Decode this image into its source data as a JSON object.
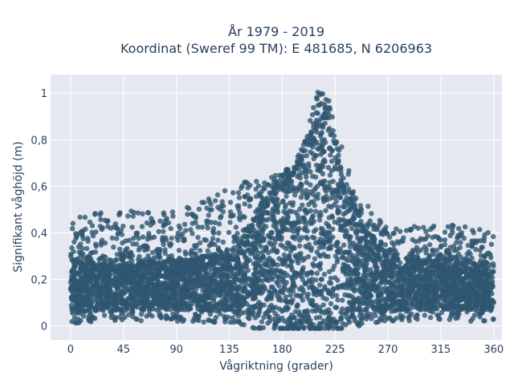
{
  "chart_data": {
    "type": "scatter",
    "title": [
      "År 1979 - 2019",
      "Koordinat (Sweref 99 TM): E 481685, N 6206963"
    ],
    "xlabel": "Vågriktning (grader)",
    "ylabel": "Signifikant våghöjd (m)",
    "xlim": [
      -17,
      367
    ],
    "ylim": [
      -0.06,
      1.08
    ],
    "xticks": [
      0,
      45,
      90,
      135,
      180,
      225,
      270,
      315,
      360
    ],
    "xtick_labels": [
      "0",
      "45",
      "90",
      "135",
      "180",
      "225",
      "270",
      "315",
      "360"
    ],
    "yticks": [
      0,
      0.2,
      0.4,
      0.6,
      0.8,
      1
    ],
    "ytick_labels": [
      "0",
      "0,2",
      "0,4",
      "0,6",
      "0,8",
      "1"
    ],
    "grid": true,
    "legend": "none",
    "marker_color": "#2f5670",
    "plot_background": "#e5e8f0",
    "dense_band": {
      "x": [
        0,
        45,
        90,
        135,
        150,
        165,
        180,
        190,
        200,
        210,
        220,
        230,
        240,
        255,
        270,
        300,
        330,
        360
      ],
      "y_low": [
        0.06,
        0.07,
        0.07,
        0.06,
        0.05,
        0.02,
        0.0,
        0.0,
        0.0,
        0.0,
        0.0,
        0.02,
        0.04,
        0.06,
        0.06,
        0.07,
        0.07,
        0.07
      ],
      "y_high": [
        0.27,
        0.27,
        0.28,
        0.31,
        0.4,
        0.5,
        0.6,
        0.66,
        0.75,
        0.86,
        0.85,
        0.66,
        0.52,
        0.38,
        0.3,
        0.28,
        0.27,
        0.27
      ]
    },
    "envelope": {
      "x": [
        0,
        45,
        90,
        135,
        150,
        165,
        180,
        190,
        200,
        210,
        220,
        230,
        240,
        255,
        270,
        300,
        330,
        360
      ],
      "y_max": [
        0.47,
        0.51,
        0.5,
        0.6,
        0.62,
        0.63,
        0.66,
        0.7,
        0.8,
        1.02,
        0.97,
        0.78,
        0.62,
        0.5,
        0.42,
        0.43,
        0.44,
        0.42
      ]
    }
  }
}
